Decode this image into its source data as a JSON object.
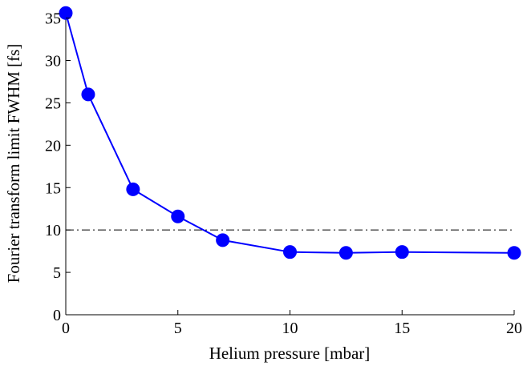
{
  "chart_data": {
    "type": "line",
    "xlabel": "Helium pressure [mbar]",
    "ylabel": "Fourier transform limit FWHM [fs]",
    "xlim": [
      0,
      20
    ],
    "ylim": [
      0,
      36
    ],
    "xticks": [
      0,
      5,
      10,
      15,
      20
    ],
    "yticks": [
      0,
      5,
      10,
      15,
      20,
      25,
      30,
      35
    ],
    "grid": false,
    "series": [
      {
        "x": [
          0,
          1,
          3,
          5,
          7,
          10,
          12.5,
          15,
          20
        ],
        "y": [
          35.6,
          26.0,
          14.8,
          11.6,
          8.8,
          7.4,
          7.3,
          7.4,
          7.3
        ],
        "color": "#0000ff",
        "marker": "circle"
      }
    ],
    "reference_line": {
      "y": 10,
      "style": "dash-dot",
      "color": "#000000"
    }
  }
}
